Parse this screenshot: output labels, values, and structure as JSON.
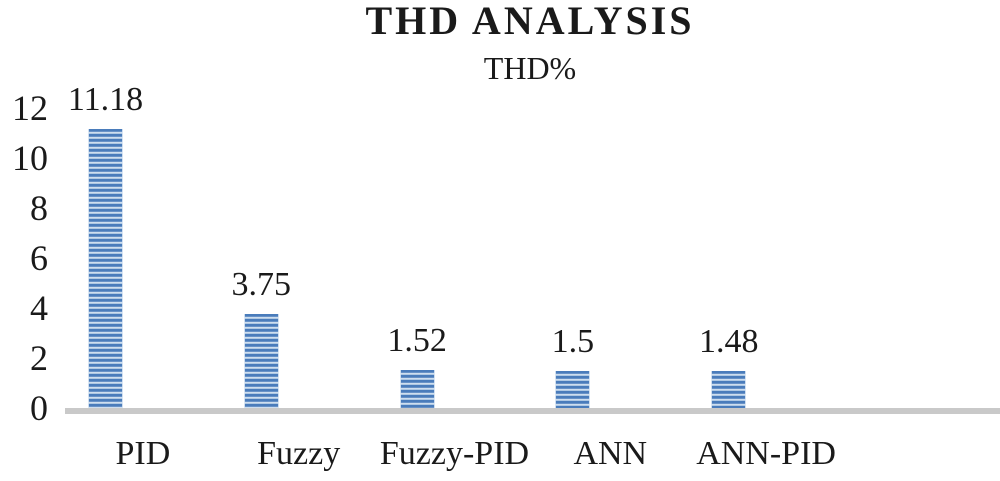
{
  "chart_data": {
    "type": "bar",
    "title": "THD ANALYSIS",
    "subtitle": "THD%",
    "categories": [
      "PID",
      "Fuzzy",
      "Fuzzy-PID",
      "ANN",
      "ANN-PID"
    ],
    "values": [
      11.18,
      3.75,
      1.52,
      1.5,
      1.48
    ],
    "value_labels": [
      "11.18",
      "3.75",
      "1.52",
      "1.5",
      "1.48"
    ],
    "xlabel": "",
    "ylabel": "",
    "ylim": [
      0,
      12
    ],
    "yticks": [
      "0",
      "2",
      "4",
      "6",
      "8",
      "10",
      "12"
    ],
    "ytick_values": [
      0,
      2,
      4,
      6,
      8,
      10,
      12
    ],
    "grid": false,
    "legend_position": "none",
    "bar_pattern": "horizontal-stripes",
    "colors": {
      "bar_stripe_dark": "#4a7cbb",
      "bar_stripe_pale": "#dbe7f4",
      "bar_stripe_light": "#9fbddd",
      "axis_line": "#c9c9c9",
      "text": "#1a1a1a",
      "background": "#ffffff"
    }
  }
}
